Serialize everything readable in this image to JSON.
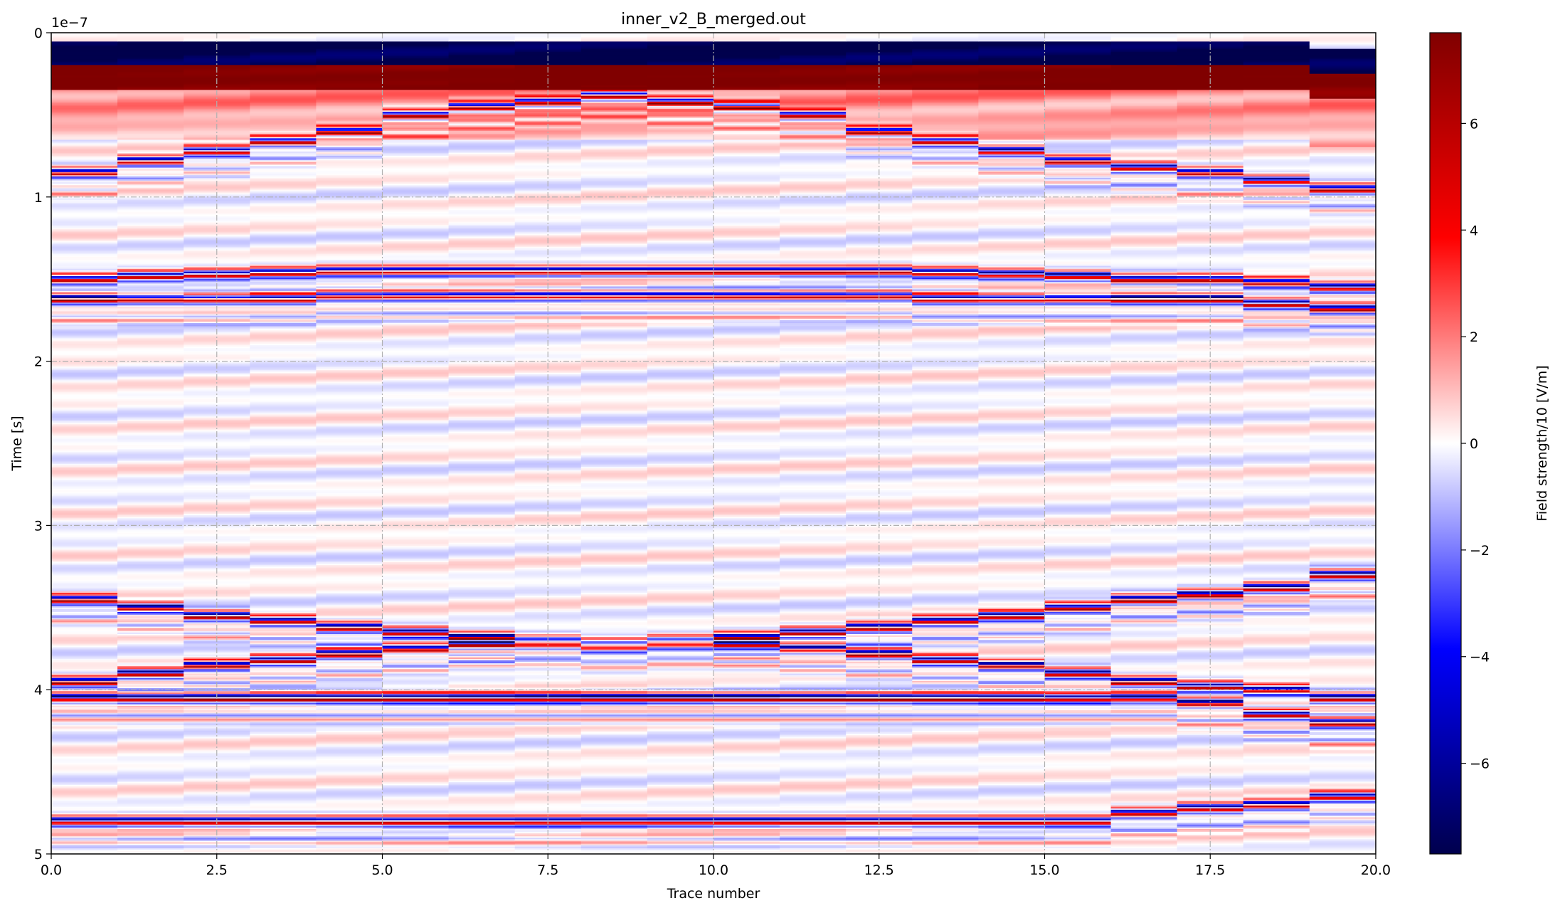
{
  "chart_data": {
    "type": "heatmap",
    "title": "inner_v2_B_merged.out",
    "xlabel": "Trace number",
    "ylabel": "Time [s]",
    "y_offset_label": "1e−7",
    "colorbar_label": "Field strength/10 [V/m]",
    "xlim": [
      0,
      20
    ],
    "ylim": [
      5,
      0
    ],
    "y_scale_factor": 1e-07,
    "x_ticks": [
      0,
      2.5,
      5,
      7.5,
      10,
      12.5,
      15,
      17.5,
      20
    ],
    "x_tick_labels": [
      "0.0",
      "2.5",
      "5.0",
      "7.5",
      "10.0",
      "12.5",
      "15.0",
      "17.5",
      "20.0"
    ],
    "y_ticks": [
      0,
      1,
      2,
      3,
      4,
      5
    ],
    "y_tick_labels": [
      "0",
      "1",
      "2",
      "3",
      "4",
      "5"
    ],
    "colorbar_range": [
      -7.7,
      7.7
    ],
    "colorbar_ticks": [
      6,
      4,
      2,
      0,
      -2,
      -4,
      -6
    ],
    "colorbar_tick_labels": [
      "6",
      "4",
      "2",
      "0",
      "−2",
      "−4",
      "−6"
    ],
    "colormap": "seismic",
    "grid": true,
    "grid_style": "dash-dot",
    "n_traces": 20,
    "time_unit": "1e-7 s",
    "trace_direct_wave_time": [
      0.1,
      0.1,
      0.1,
      0.1,
      0.1,
      0.1,
      0.1,
      0.1,
      0.1,
      0.1,
      0.1,
      0.1,
      0.1,
      0.1,
      0.1,
      0.1,
      0.1,
      0.1,
      0.1,
      0.15
    ],
    "trace_reflection_times": [
      [
        0.85,
        1.5,
        1.62,
        3.45,
        3.95,
        4.05,
        4.8
      ],
      [
        0.78,
        1.48,
        1.62,
        3.5,
        3.9,
        4.05,
        4.8
      ],
      [
        0.72,
        1.47,
        1.62,
        3.55,
        3.85,
        4.05,
        4.8
      ],
      [
        0.66,
        1.46,
        1.62,
        3.58,
        3.82,
        4.05,
        4.8
      ],
      [
        0.6,
        1.45,
        1.6,
        3.62,
        3.78,
        4.05,
        4.8
      ],
      [
        0.5,
        1.45,
        1.6,
        3.65,
        3.75,
        4.05,
        4.8
      ],
      [
        0.45,
        1.45,
        1.6,
        3.68,
        3.72,
        4.05,
        4.8
      ],
      [
        0.42,
        1.45,
        1.6,
        3.7,
        3.72,
        4.05,
        4.8
      ],
      [
        0.38,
        1.45,
        1.6,
        3.72,
        3.74,
        4.05,
        4.8
      ],
      [
        0.42,
        1.45,
        1.6,
        3.7,
        3.72,
        4.05,
        4.8
      ],
      [
        0.45,
        1.45,
        1.6,
        3.68,
        3.72,
        4.05,
        4.8
      ],
      [
        0.5,
        1.45,
        1.6,
        3.65,
        3.75,
        4.05,
        4.8
      ],
      [
        0.6,
        1.45,
        1.6,
        3.62,
        3.78,
        4.05,
        4.8
      ],
      [
        0.66,
        1.46,
        1.62,
        3.58,
        3.82,
        4.05,
        4.8
      ],
      [
        0.72,
        1.47,
        1.62,
        3.55,
        3.85,
        4.05,
        4.8
      ],
      [
        0.78,
        1.48,
        1.62,
        3.5,
        3.9,
        4.05,
        4.8
      ],
      [
        0.82,
        1.5,
        1.62,
        3.45,
        3.95,
        4.05,
        4.75
      ],
      [
        0.85,
        1.5,
        1.62,
        3.42,
        3.98,
        4.08,
        4.72
      ],
      [
        0.9,
        1.52,
        1.65,
        3.38,
        4.0,
        4.15,
        4.7
      ],
      [
        0.95,
        1.55,
        1.68,
        3.3,
        4.05,
        4.2,
        4.65
      ]
    ]
  }
}
